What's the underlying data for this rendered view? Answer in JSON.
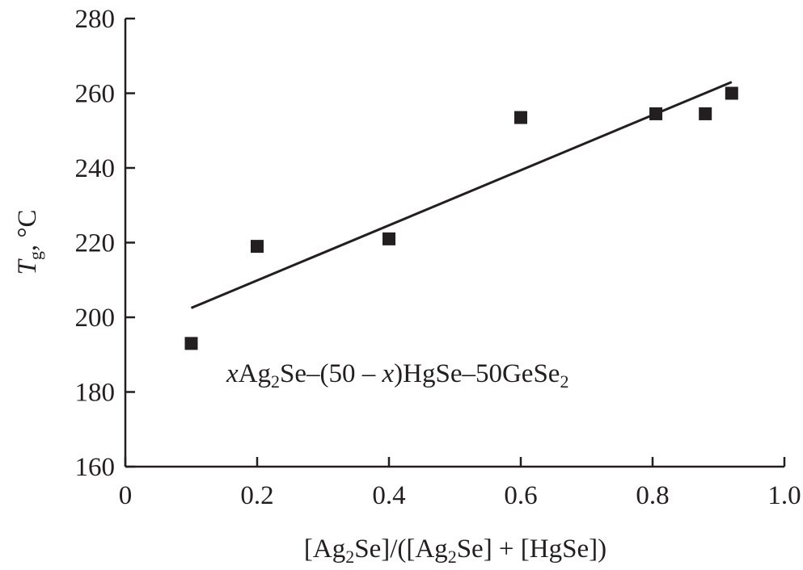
{
  "chart_data": {
    "type": "scatter",
    "xlabel": {
      "pre": "[Ag",
      "sub1": "2",
      "mid": "Se]/([Ag",
      "sub2": "2",
      "post": "Se] + [HgSe])"
    },
    "ylabel": {
      "symbol": "T",
      "sub": "g",
      "unit": ", °C"
    },
    "xlim": [
      0,
      1.0
    ],
    "ylim": [
      160,
      280
    ],
    "xticks": [
      0,
      0.2,
      0.4,
      0.6,
      0.8,
      1.0
    ],
    "xtick_labels": [
      "0",
      "0.2",
      "0.4",
      "0.6",
      "0.8",
      "1.0"
    ],
    "yticks": [
      160,
      180,
      200,
      220,
      240,
      260,
      280
    ],
    "ytick_labels": [
      "160",
      "180",
      "200",
      "220",
      "240",
      "260",
      "280"
    ],
    "grid": false,
    "series": [
      {
        "marker": "square",
        "color": "#231f20",
        "x": [
          0.1,
          0.2,
          0.4,
          0.6,
          0.805,
          0.88,
          0.92
        ],
        "y": [
          193,
          219,
          221,
          253.5,
          254.5,
          254.5,
          260
        ]
      }
    ],
    "fit_line": {
      "x": [
        0.1,
        0.92
      ],
      "y": [
        202.5,
        263
      ]
    },
    "annotation": {
      "var1": "x",
      "t1": "Ag",
      "s1": "2",
      "t2": "Se–(50 – ",
      "var2": "x",
      "t3": ")HgSe–50GeSe",
      "s2": "2"
    }
  }
}
